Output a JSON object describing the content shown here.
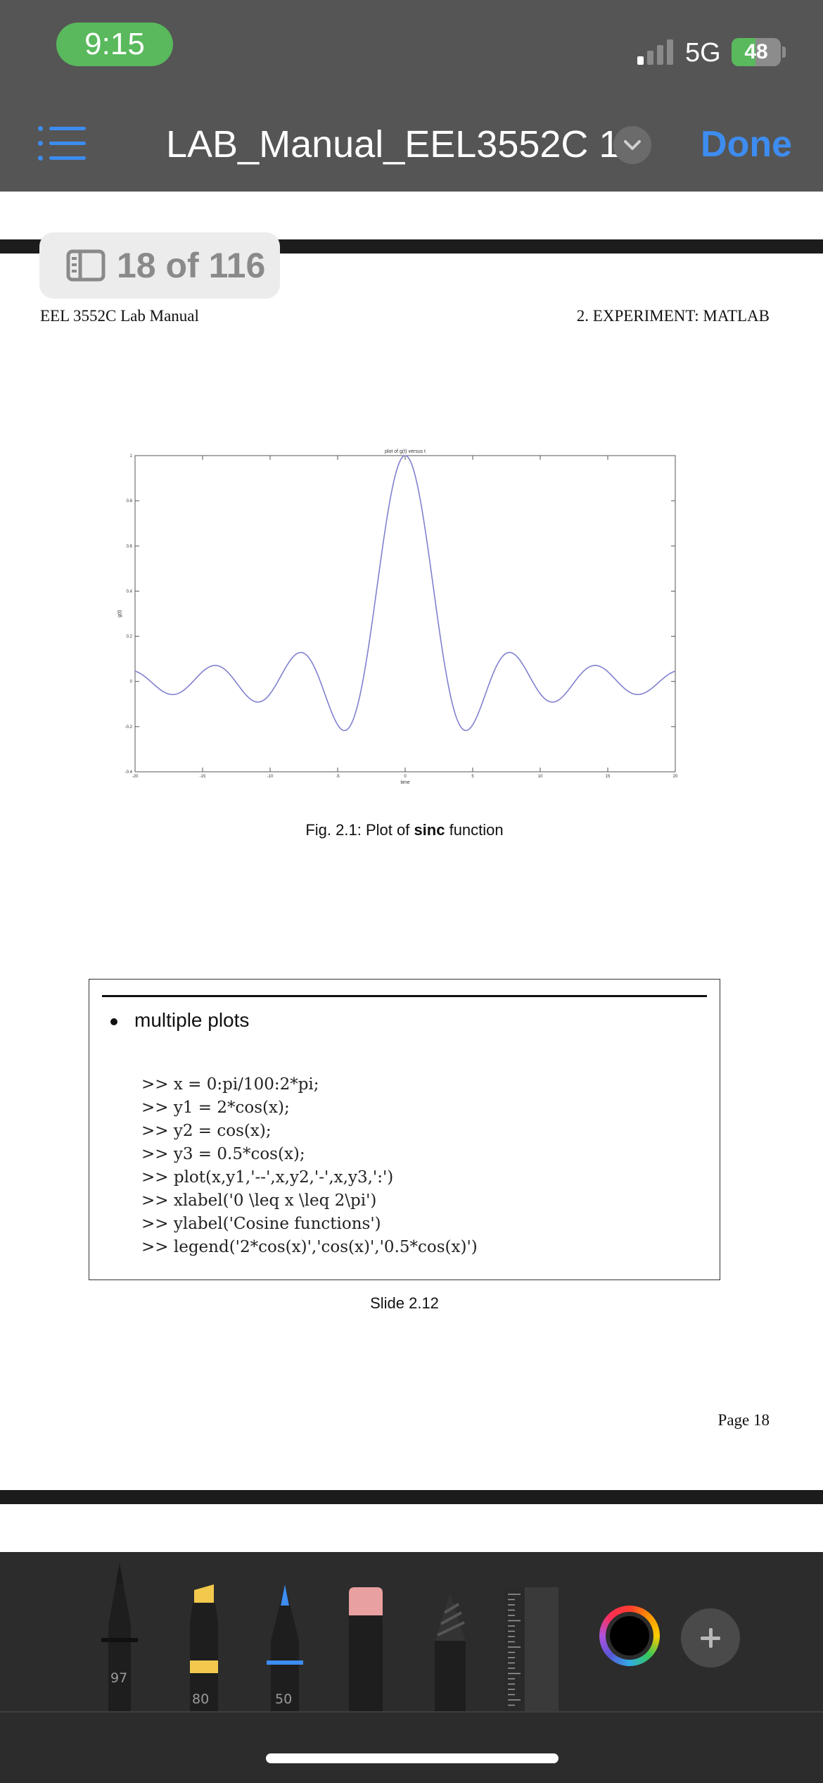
{
  "status_bar": {
    "time": "9:15",
    "network": "5G",
    "battery": "48",
    "battery_level": 0.48
  },
  "nav": {
    "title": "LAB_Manual_EEL3552C 1",
    "done_label": "Done",
    "menu_icon": "list-icon",
    "title_menu_icon": "chevron-down-icon"
  },
  "page_indicator": {
    "text": "18 of 116",
    "icon": "sidebar-icon"
  },
  "page": {
    "header_left": "EEL 3552C Lab Manual",
    "header_right": "2.  EXPERIMENT: MATLAB",
    "footer": "Page 18"
  },
  "chart_data": {
    "type": "line",
    "title": "plot of g(t) versus t",
    "xlabel": "time",
    "ylabel": "g(t)",
    "xlim": [
      -20,
      20
    ],
    "ylim": [
      -0.4,
      1
    ],
    "xticks": [
      -20,
      -15,
      -10,
      -5,
      0,
      5,
      10,
      15,
      20
    ],
    "yticks": [
      -0.4,
      -0.2,
      0,
      0.2,
      0.4,
      0.6,
      0.8,
      1
    ],
    "grid": false,
    "series": [
      {
        "function": "sin(t)/t",
        "color": "#8080d0"
      }
    ]
  },
  "figure_caption": {
    "before": "Fig. 2.1: Plot of ",
    "bold": "sinc",
    "after": " function"
  },
  "slide": {
    "bullet": "multiple plots",
    "code": [
      ">> x = 0:pi/100:2*pi;",
      ">> y1 = 2*cos(x);",
      ">> y2 = cos(x);",
      ">> y3 = 0.5*cos(x);",
      ">> plot(x,y1,'--',x,y2,'-',x,y3,':')",
      ">> xlabel('0 \\leq x \\leq 2\\pi')",
      ">> ylabel('Cosine functions')",
      ">> legend('2*cos(x)','cos(x)','0.5*cos(x)')"
    ],
    "caption": "Slide 2.12"
  },
  "toolbar": {
    "tools": [
      {
        "name": "pen",
        "icon": "pen-icon",
        "value": "97",
        "tip_color": "#1a1a1a",
        "band_color": "#111111"
      },
      {
        "name": "highlighter",
        "icon": "highlighter-icon",
        "value": "80",
        "tip_color": "#f2c94c",
        "band_color": "#f2c94c"
      },
      {
        "name": "pencil",
        "icon": "pencil-icon",
        "value": "50",
        "tip_color": "#3d8cf0",
        "band_color": "#3d8cf0"
      },
      {
        "name": "eraser",
        "icon": "eraser-icon",
        "tip_color": "#e8a0a0"
      },
      {
        "name": "lasso",
        "icon": "lasso-icon"
      },
      {
        "name": "ruler",
        "icon": "ruler-icon"
      }
    ],
    "current_color": "#000000",
    "color_icon": "color-picker-icon",
    "add_icon": "plus-icon"
  }
}
